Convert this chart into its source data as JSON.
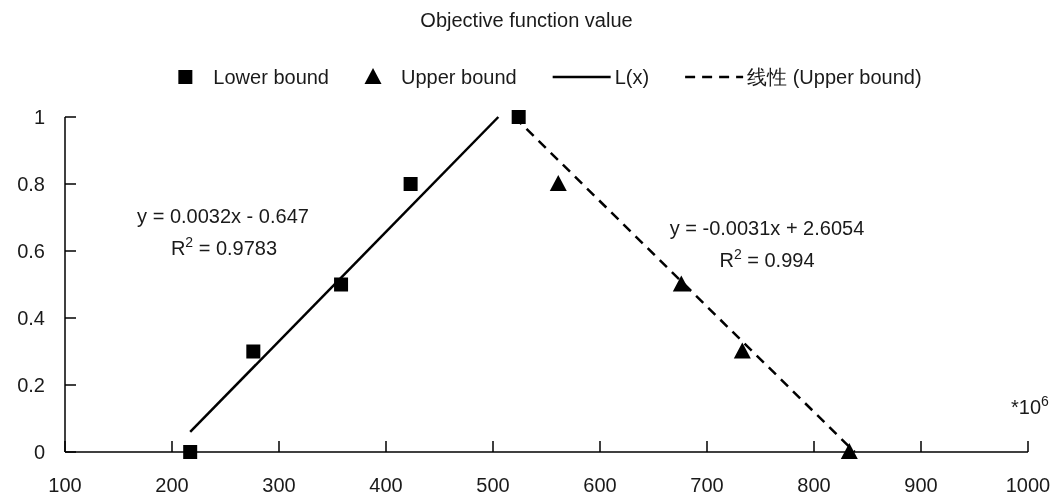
{
  "chart_data": {
    "type": "scatter",
    "title": "Objective function value",
    "xlim": [
      100,
      1000
    ],
    "xticks": [
      100,
      200,
      300,
      400,
      500,
      600,
      700,
      800,
      900,
      1000
    ],
    "ylim": [
      0,
      1
    ],
    "yticks": [
      0,
      0.2,
      0.4,
      0.6,
      0.8,
      1
    ],
    "grid": false,
    "legend": "top",
    "series": [
      {
        "name": "Lower bound",
        "type": "scatter",
        "marker": "square",
        "color": "#000000",
        "x": [
          217,
          276,
          358,
          423,
          524
        ],
        "values": [
          0,
          0.3,
          0.5,
          0.8,
          1
        ]
      },
      {
        "name": "Upper bound",
        "type": "scatter",
        "marker": "triangle",
        "color": "#000000",
        "x": [
          561,
          676,
          733,
          833
        ],
        "values": [
          0.8,
          0.5,
          0.3,
          0
        ]
      },
      {
        "name": "L(x)",
        "type": "line",
        "marker": "none",
        "line_style": "solid",
        "color": "#000000",
        "x": [
          217,
          505
        ],
        "values": [
          0.06,
          1
        ]
      },
      {
        "name": "线性 (Upper bound)",
        "type": "line",
        "marker": "none",
        "line_style": "dashed",
        "color": "#000000",
        "x": [
          520,
          838
        ],
        "values": [
          1,
          0
        ]
      }
    ],
    "annotations": [
      "y = 0.0032x - 0.647",
      "R$^{2}$ = 0.9783",
      "y = -0.0031x + 2.6054",
      "R$^{2}$ = 0.994",
      "*10$^{6}$"
    ]
  }
}
